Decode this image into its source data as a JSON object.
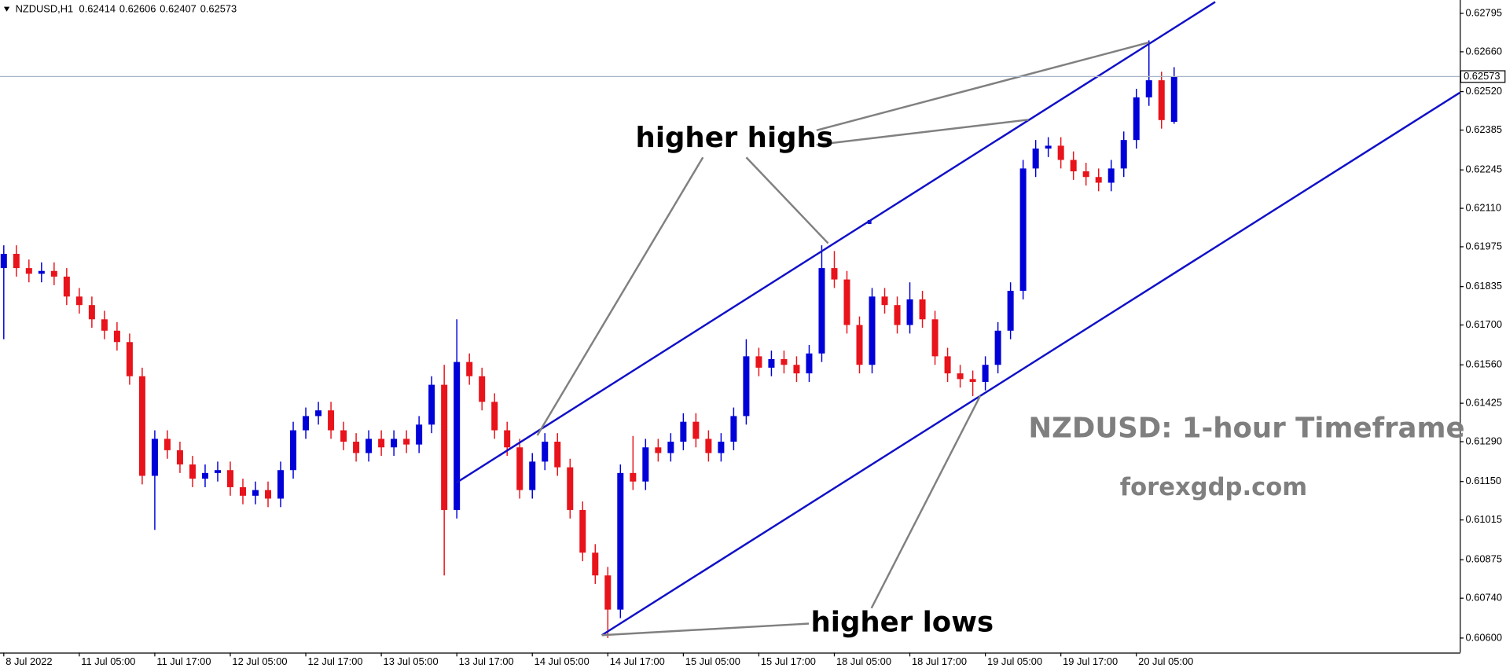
{
  "chart_data": {
    "type": "candlestick",
    "symbol": "NZDUSD,H1",
    "up_color": "#0000d8",
    "down_color": "#e8131b",
    "ylim": [
      0.60549,
      0.62842
    ],
    "yticks": [
      0.62795,
      {
        "value": 0.6266,
        "label": "0.62660"
      },
      {
        "value": 0.6252,
        "label": "0.62520"
      },
      0.62385,
      0.62245,
      {
        "value": 0.6211,
        "label": "0.62110"
      },
      0.61975,
      0.61835,
      {
        "value": 0.617,
        "label": "0.61700"
      },
      {
        "value": 0.6156,
        "label": "0.61560"
      },
      0.61425,
      {
        "value": 0.6129,
        "label": "0.61290"
      },
      {
        "value": 0.6115,
        "label": "0.61150"
      },
      0.61015,
      0.60875,
      {
        "value": 0.6074,
        "label": "0.60740"
      },
      {
        "value": 0.606,
        "label": "0.60600"
      }
    ],
    "xlim": [
      -0.3,
      115.7
    ],
    "xticks": [
      {
        "value": 0,
        "label": "8 Jul 2022"
      },
      {
        "value": 6,
        "label": "11 Jul 05:00"
      },
      {
        "value": 12,
        "label": "11 Jul 17:00"
      },
      {
        "value": 18,
        "label": "12 Jul 05:00"
      },
      {
        "value": 24,
        "label": "12 Jul 17:00"
      },
      {
        "value": 30,
        "label": "13 Jul 05:00"
      },
      {
        "value": 36,
        "label": "13 Jul 17:00"
      },
      {
        "value": 42,
        "label": "14 Jul 05:00"
      },
      {
        "value": 48,
        "label": "14 Jul 17:00"
      },
      {
        "value": 54,
        "label": "15 Jul 05:00"
      },
      {
        "value": 60,
        "label": "15 Jul 17:00"
      },
      {
        "value": 66,
        "label": "18 Jul 05:00"
      },
      {
        "value": 72,
        "label": "18 Jul 17:00"
      },
      {
        "value": 78,
        "label": "19 Jul 05:00"
      },
      {
        "value": 84,
        "label": "19 Jul 17:00"
      },
      {
        "value": 90,
        "label": "20 Jul 05:00"
      }
    ],
    "open": [
      0.619,
      0.6195,
      0.619,
      0.6188,
      0.6189,
      0.6187,
      0.618,
      0.6177,
      0.6172,
      0.6168,
      0.6164,
      0.6152,
      0.6117,
      0.613,
      0.6126,
      0.6121,
      0.6116,
      0.6118,
      0.6119,
      0.6113,
      0.611,
      0.6112,
      0.6109,
      0.6119,
      0.6133,
      0.6138,
      0.614,
      0.6133,
      0.6129,
      0.6125,
      0.613,
      0.6127,
      0.613,
      0.6128,
      0.6135,
      0.6149,
      0.6105,
      0.6157,
      0.6152,
      0.6143,
      0.6133,
      0.6127,
      0.6112,
      0.6122,
      0.6129,
      0.612,
      0.6105,
      0.609,
      0.6082,
      0.607,
      0.6118,
      0.6115,
      0.6127,
      0.6125,
      0.6129,
      0.6136,
      0.613,
      0.6125,
      0.6129,
      0.6138,
      0.6159,
      0.6155,
      0.6158,
      0.6156,
      0.6153,
      0.616,
      0.619,
      0.6186,
      0.617,
      0.6156,
      0.618,
      0.6177,
      0.617,
      0.6179,
      0.6172,
      0.6159,
      0.6153,
      0.6151,
      0.615,
      0.6156,
      0.6168,
      0.6182,
      0.6225,
      0.6232,
      0.6233,
      0.6228,
      0.6224,
      0.6222,
      0.622,
      0.6225,
      0.6235,
      0.625,
      0.6256,
      0.62414
    ],
    "high": [
      0.6198,
      0.6198,
      0.6193,
      0.6192,
      0.6192,
      0.619,
      0.6183,
      0.618,
      0.6175,
      0.6171,
      0.6167,
      0.6155,
      0.6133,
      0.6133,
      0.6129,
      0.6124,
      0.6121,
      0.6122,
      0.6122,
      0.6116,
      0.6115,
      0.6115,
      0.6122,
      0.6136,
      0.6141,
      0.6143,
      0.6143,
      0.6136,
      0.6132,
      0.6133,
      0.6133,
      0.6133,
      0.6133,
      0.6138,
      0.6152,
      0.6156,
      0.6172,
      0.616,
      0.6155,
      0.6146,
      0.6136,
      0.613,
      0.6125,
      0.6132,
      0.6132,
      0.6123,
      0.6108,
      0.6093,
      0.6085,
      0.6121,
      0.6131,
      0.613,
      0.613,
      0.6132,
      0.6139,
      0.6139,
      0.6133,
      0.6132,
      0.6141,
      0.6165,
      0.6162,
      0.6161,
      0.6161,
      0.6159,
      0.6163,
      0.6198,
      0.6196,
      0.6189,
      0.6173,
      0.6183,
      0.6183,
      0.618,
      0.6185,
      0.6182,
      0.6175,
      0.6162,
      0.6156,
      0.6154,
      0.6159,
      0.6171,
      0.6185,
      0.6228,
      0.6235,
      0.6236,
      0.6236,
      0.6231,
      0.6227,
      0.6225,
      0.6228,
      0.6238,
      0.6253,
      0.627,
      0.6259,
      0.62606
    ],
    "low": [
      0.6165,
      0.6187,
      0.6185,
      0.6185,
      0.6184,
      0.6177,
      0.6174,
      0.6169,
      0.6165,
      0.6161,
      0.6149,
      0.6114,
      0.6098,
      0.6123,
      0.6118,
      0.6113,
      0.6113,
      0.6115,
      0.611,
      0.6107,
      0.6107,
      0.6106,
      0.6106,
      0.6116,
      0.613,
      0.6135,
      0.613,
      0.6126,
      0.6122,
      0.6122,
      0.6124,
      0.6124,
      0.6125,
      0.6125,
      0.6132,
      0.6082,
      0.6102,
      0.6149,
      0.614,
      0.613,
      0.6124,
      0.6109,
      0.6109,
      0.6119,
      0.6117,
      0.6102,
      0.6087,
      0.6079,
      0.606,
      0.6067,
      0.6112,
      0.6112,
      0.6122,
      0.6122,
      0.6126,
      0.6127,
      0.6122,
      0.6122,
      0.6126,
      0.6135,
      0.6152,
      0.6152,
      0.6153,
      0.615,
      0.615,
      0.6157,
      0.6183,
      0.6167,
      0.6153,
      0.6153,
      0.6174,
      0.6167,
      0.6167,
      0.6169,
      0.6156,
      0.615,
      0.6148,
      0.6145,
      0.6147,
      0.6153,
      0.6165,
      0.6179,
      0.6222,
      0.6229,
      0.6225,
      0.6221,
      0.6219,
      0.6217,
      0.6217,
      0.6222,
      0.6232,
      0.6247,
      0.6239,
      0.62407
    ],
    "close": [
      0.6195,
      0.619,
      0.6188,
      0.6189,
      0.6187,
      0.618,
      0.6177,
      0.6172,
      0.6168,
      0.6164,
      0.6152,
      0.6117,
      0.613,
      0.6126,
      0.6121,
      0.6116,
      0.6118,
      0.6119,
      0.6113,
      0.611,
      0.6112,
      0.6109,
      0.6119,
      0.6133,
      0.6138,
      0.614,
      0.6133,
      0.6129,
      0.6125,
      0.613,
      0.6127,
      0.613,
      0.6128,
      0.6135,
      0.6149,
      0.6105,
      0.6157,
      0.6152,
      0.6143,
      0.6133,
      0.6127,
      0.6112,
      0.6122,
      0.6129,
      0.612,
      0.6105,
      0.609,
      0.6082,
      0.607,
      0.6118,
      0.6115,
      0.6127,
      0.6125,
      0.6129,
      0.6136,
      0.613,
      0.6125,
      0.6129,
      0.6138,
      0.6159,
      0.6155,
      0.6158,
      0.6156,
      0.6153,
      0.616,
      0.619,
      0.6186,
      0.617,
      0.6156,
      0.618,
      0.6177,
      0.617,
      0.6179,
      0.6172,
      0.6159,
      0.6153,
      0.6151,
      0.615,
      0.6156,
      0.6168,
      0.6182,
      0.6225,
      0.6232,
      0.6233,
      0.6228,
      0.6224,
      0.6222,
      0.622,
      0.6225,
      0.6235,
      0.625,
      0.6256,
      0.6242,
      0.62573
    ],
    "annotations": [
      "higher highs",
      "higher lows",
      "NZDUSD: 1-hour Timeframe",
      "forexgdp.com"
    ]
  }
}
